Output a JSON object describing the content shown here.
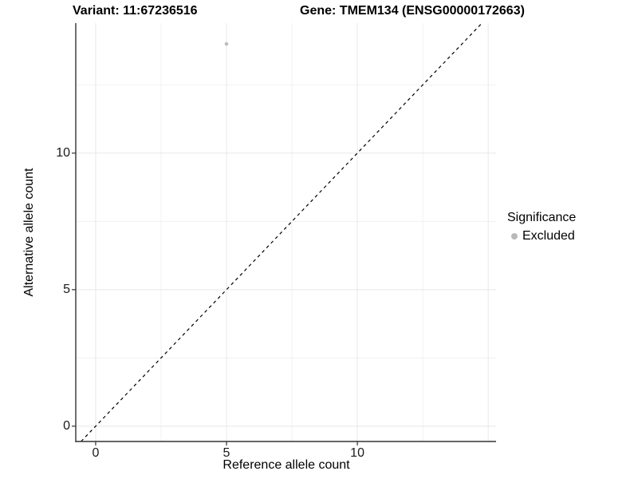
{
  "chart_data": {
    "type": "scatter",
    "title_left": "Variant: 11:67236516",
    "title_right": "Gene: TMEM134 (ENSG00000172663)",
    "xlabel": "Reference allele count",
    "ylabel": "Alternative allele count",
    "xlim": [
      -0.76,
      15.3
    ],
    "ylim": [
      -0.56,
      14.76
    ],
    "x_ticks": [
      0,
      5,
      10
    ],
    "y_ticks": [
      0,
      5,
      10
    ],
    "x_grid_major": [
      0,
      5,
      10,
      15
    ],
    "y_grid_major": [
      0,
      5,
      10
    ],
    "x_grid_minor": [
      2.5,
      7.5,
      12.5
    ],
    "y_grid_minor": [
      2.5,
      7.5,
      12.5
    ],
    "grid": true,
    "points": [
      {
        "x": 5,
        "y": 14,
        "significance": "Excluded"
      }
    ],
    "reference_line": {
      "slope": 1,
      "intercept": 0,
      "style": "dashed",
      "color": "#000000"
    },
    "legend": {
      "title": "Significance",
      "position": "right",
      "items": [
        {
          "label": "Excluded",
          "color": "#b9b9b9"
        }
      ]
    },
    "colors": {
      "point": "#bdbdbd",
      "axis_line": "#333333",
      "grid_major": "#e8e8e8",
      "grid_minor": "#f1f1f1",
      "text": "#000000"
    }
  }
}
